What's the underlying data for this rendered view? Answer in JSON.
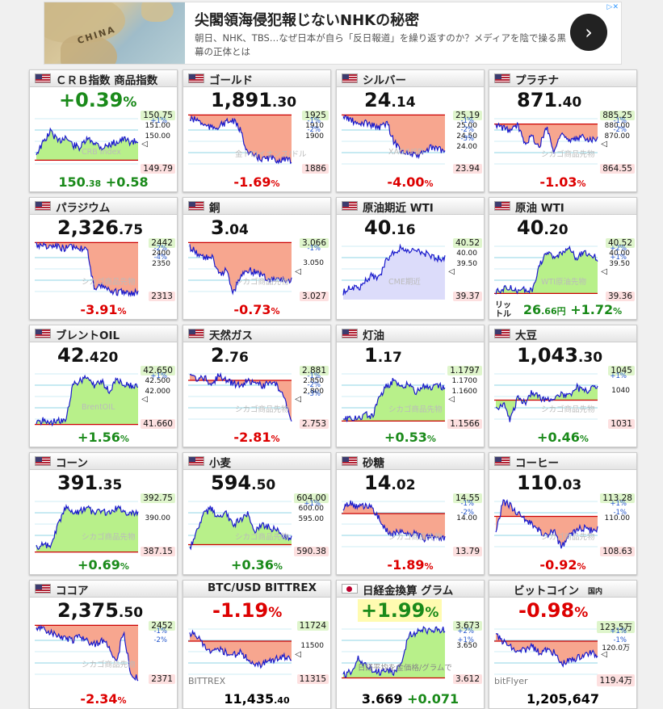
{
  "ad": {
    "map_word": "CHINA",
    "title": "尖閣領海侵犯報じないNHKの秘密",
    "subtitle": "朝日、NHK、TBS…なぜ日本が自ら「反日報道」を繰り返すのか？メディアを陰で操る黒幕の正体とは",
    "button_icon": "chevron-right-icon",
    "button_glyph": "›",
    "close_glyph": "▷✕"
  },
  "colors": {
    "up_fill": "#b8f08a",
    "down_fill": "#f7a68f",
    "line": "#1a1acc",
    "purple_fill": "#dcdcfa"
  },
  "panels": [
    {
      "id": "crb",
      "flag": "us",
      "name": "ＣＲＢ指数 商品指数",
      "big_int": "+0.39",
      "big_dec": "%",
      "big_dir": "up",
      "big_pct": true,
      "hi": "150.75",
      "lo": "149.79",
      "mids": [
        "151.00",
        "150.00"
      ],
      "pcts": [
        "+1%"
      ],
      "wm": "CRB Index",
      "arrow": "◁",
      "bottom_val": "150",
      "bottom_dec": ".38",
      "bottom_chg": "+0.58",
      "bottom_dir": "up",
      "fill": "up",
      "shape": "crb",
      "ref": 0.82
    },
    {
      "id": "gold",
      "flag": "us",
      "name": "ゴールド",
      "big_int": "1,891",
      "big_dec": ".30",
      "big_dir": "none",
      "hi": "1925",
      "lo": "1886",
      "mids": [
        "1910",
        "1900"
      ],
      "pcts": [
        "-1%",
        "-2%"
      ],
      "wm": "金トロイオンス/ドル",
      "bottom_val": "-1.69",
      "bottom_dec": "%",
      "bottom_dir": "dn",
      "fill": "down",
      "shape": "gold",
      "ref": 0.02
    },
    {
      "id": "silver",
      "flag": "us",
      "name": "シルバー",
      "big_int": "24",
      "big_dec": ".14",
      "big_dir": "none",
      "hi": "25.19",
      "lo": "23.94",
      "mids": [
        "25.00",
        "24.50",
        "24.00"
      ],
      "pcts": [
        "-1%",
        "-2%",
        "-3%"
      ],
      "wm": "XAG/USD",
      "bottom_val": "-4.00",
      "bottom_dec": "%",
      "bottom_dir": "dn",
      "fill": "down",
      "shape": "silver",
      "ref": 0.02
    },
    {
      "id": "platinum",
      "flag": "us",
      "name": "プラチナ",
      "big_int": "871",
      "big_dec": ".40",
      "big_dir": "none",
      "hi": "885.25",
      "lo": "864.55",
      "mids": [
        "880.00",
        "870.00"
      ],
      "pcts": [
        "-1%",
        "-2%"
      ],
      "wm": "シカゴ商品先物",
      "arrow": "◁",
      "bottom_val": "-1.03",
      "bottom_dec": "%",
      "bottom_dir": "dn",
      "fill": "down",
      "shape": "plat",
      "ref": 0.18
    },
    {
      "id": "palladium",
      "flag": "us",
      "name": "パラジウム",
      "big_int": "2,326",
      "big_dec": ".75",
      "big_dir": "none",
      "hi": "2442",
      "lo": "2313",
      "mids": [
        "2400",
        "2350"
      ],
      "pcts": [
        "-2%",
        "-4%"
      ],
      "wm": "シカゴ商品先物",
      "bottom_val": "-3.91",
      "bottom_dec": "%",
      "bottom_dir": "dn",
      "fill": "down",
      "shape": "pall",
      "ref": 0.02
    },
    {
      "id": "copper",
      "flag": "us",
      "name": "銅",
      "big_int": "3",
      "big_dec": ".04",
      "big_dir": "none",
      "hi": "3.066",
      "lo": "3.027",
      "mids": [
        "3.050"
      ],
      "pcts": [
        "-1%"
      ],
      "wm": "シカゴ商品先物",
      "arrow": "◁",
      "bottom_val": "-0.73",
      "bottom_dec": "%",
      "bottom_dir": "dn",
      "fill": "down",
      "shape": "copper",
      "ref": 0.02
    },
    {
      "id": "crude_near",
      "flag": "us",
      "name": "原油期近 WTI",
      "big_int": "40",
      "big_dec": ".16",
      "big_dir": "none",
      "hi": "40.52",
      "lo": "39.37",
      "mids": [
        "40.00",
        "39.50"
      ],
      "pcts": [],
      "wm": "CME期近",
      "arrow": "◁",
      "bottom_val": "",
      "bottom_dec": "",
      "bottom_dir": "none",
      "fill": "purple",
      "shape": "crude",
      "ref": 1.0
    },
    {
      "id": "crude_wti",
      "flag": "us",
      "name": "原油 WTI",
      "big_int": "40",
      "big_dec": ".20",
      "big_dir": "none",
      "hi": "40.52",
      "lo": "39.36",
      "mids": [
        "40.00",
        "39.50"
      ],
      "pcts": [
        "+2%",
        "+1%"
      ],
      "wm": "WTI原油先物",
      "arrow": "◁",
      "ltr": "リッ\nトル",
      "bottom_val": "26",
      "bottom_dec": ".66円",
      "bottom_chg": "+1.72",
      "bottom_chg_unit": "%",
      "bottom_dir": "up",
      "fill": "up",
      "shape": "wti",
      "ref": 0.92
    },
    {
      "id": "brent",
      "flag": "us",
      "name": "ブレントOIL",
      "big_int": "42",
      "big_dec": ".420",
      "big_dir": "none",
      "hi": "42.650",
      "lo": "41.660",
      "mids": [
        "42.500",
        "42.000"
      ],
      "pcts": [
        "+1%"
      ],
      "wm": "BrentOIL",
      "arrow": "◁",
      "bottom_val": "+1.56",
      "bottom_dec": "%",
      "bottom_dir": "up",
      "fill": "up",
      "shape": "brent",
      "ref": 0.98
    },
    {
      "id": "natgas",
      "flag": "us",
      "name": "天然ガス",
      "big_int": "2",
      "big_dec": ".76",
      "big_dir": "none",
      "hi": "2.881",
      "lo": "2.753",
      "mids": [
        "2.850",
        "2.800"
      ],
      "pcts": [
        "-1%",
        "-2%",
        "-3%"
      ],
      "wm": "シカゴ商品先物",
      "arrow": "◁",
      "bottom_val": "-2.81",
      "bottom_dec": "%",
      "bottom_dir": "dn",
      "fill": "down",
      "shape": "natgas",
      "ref": 0.2
    },
    {
      "id": "heating",
      "flag": "us",
      "name": "灯油",
      "big_int": "1",
      "big_dec": ".17",
      "big_dir": "none",
      "hi": "1.1797",
      "lo": "1.1566",
      "mids": [
        "1.1700",
        "1.1600"
      ],
      "pcts": [],
      "wm": "シカゴ商品先物",
      "arrow": "◁",
      "bottom_val": "+0.53",
      "bottom_dec": "%",
      "bottom_dir": "up",
      "fill": "up",
      "shape": "heat",
      "ref": 0.92
    },
    {
      "id": "soybean",
      "flag": "us",
      "name": "大豆",
      "big_int": "1,043",
      "big_dec": ".30",
      "big_dir": "none",
      "hi": "1045",
      "lo": "1031",
      "mids": [
        "1040"
      ],
      "pcts": [
        "+1%"
      ],
      "wm": "シカゴ商品先物",
      "bottom_val": "+0.46",
      "bottom_dec": "%",
      "bottom_dir": "up",
      "fill": "up",
      "shape": "soy",
      "ref": 0.55
    },
    {
      "id": "corn",
      "flag": "us",
      "name": "コーン",
      "big_int": "391",
      "big_dec": ".35",
      "big_dir": "none",
      "hi": "392.75",
      "lo": "387.15",
      "mids": [
        "390.00"
      ],
      "pcts": [],
      "wm": "シカゴ商品先物",
      "bottom_val": "+0.69",
      "bottom_dec": "%",
      "bottom_dir": "up",
      "fill": "up",
      "shape": "corn",
      "ref": 0.98
    },
    {
      "id": "wheat",
      "flag": "us",
      "name": "小麦",
      "big_int": "594",
      "big_dec": ".50",
      "big_dir": "none",
      "hi": "604.00",
      "lo": "590.38",
      "mids": [
        "600.00",
        "595.00"
      ],
      "pcts": [
        "+1%"
      ],
      "wm": "シカゴ商品先物",
      "bottom_val": "+0.36",
      "bottom_dec": "%",
      "bottom_dir": "up",
      "fill": "up",
      "shape": "wheat",
      "ref": 0.85
    },
    {
      "id": "sugar",
      "flag": "us",
      "name": "砂糖",
      "big_int": "14",
      "big_dec": ".02",
      "big_dir": "none",
      "hi": "14.55",
      "lo": "13.79",
      "mids": [
        "14.00"
      ],
      "pcts": [
        "-1%",
        "-2%"
      ],
      "wm": "シカゴ商品先物",
      "bottom_val": "-1.89",
      "bottom_dec": "%",
      "bottom_dir": "dn",
      "fill": "down",
      "shape": "sugar",
      "ref": 0.3
    },
    {
      "id": "coffee",
      "flag": "us",
      "name": "コーヒー",
      "big_int": "110",
      "big_dec": ".03",
      "big_dir": "none",
      "hi": "113.28",
      "lo": "108.63",
      "mids": [
        "110.00"
      ],
      "pcts": [
        "+1%",
        "-1%"
      ],
      "wm": "シカゴ商品先物",
      "bottom_val": "-0.92",
      "bottom_dec": "%",
      "bottom_dir": "dn",
      "fill": "down",
      "shape": "coffee",
      "ref": 0.35
    },
    {
      "id": "cocoa",
      "flag": "us",
      "name": "ココア",
      "big_int": "2,375",
      "big_dec": ".50",
      "big_dir": "none",
      "hi": "2452",
      "lo": "2371",
      "mids": [],
      "pcts": [
        "-1%",
        "-2%"
      ],
      "wm": "シカゴ商品先物",
      "bottom_val": "-2.34",
      "bottom_dec": "%",
      "bottom_dir": "dn",
      "fill": "down",
      "shape": "cocoa",
      "ref": 0.02
    },
    {
      "id": "btc_usd",
      "flag": "none",
      "name": "BTC/USD BITTREX",
      "big_int": "-1.19",
      "big_dec": "%",
      "big_dir": "dn",
      "big_pct": true,
      "hi": "11724",
      "lo": "11315",
      "mids": [
        "11500"
      ],
      "pcts": [],
      "wm": "BITTREX",
      "arrow": "◁",
      "bottom_val": "11,435",
      "bottom_dec": ".40",
      "bottom_dir": "none",
      "fill": "down",
      "shape": "btcusd",
      "ref": 0.3
    },
    {
      "id": "nikkei_gold",
      "flag": "jp",
      "name": "日経金換算 グラム",
      "big_int": "+1.99",
      "big_dec": "%",
      "big_dir": "up",
      "big_pct": true,
      "hi": "3.673",
      "lo": "3.612",
      "mids": [
        "3.650"
      ],
      "pcts": [
        "+2%",
        "+1%"
      ],
      "wm": "日経平均を金価格/グラムで",
      "bottom_val": "3.669",
      "bottom_dec": "",
      "bottom_chg": "+0.071",
      "bottom_dir": "none",
      "fill": "up",
      "shape": "nikkei",
      "ref": 0.95
    },
    {
      "id": "bitcoin",
      "flag": "none",
      "name": "ビットコイン",
      "name_small": "国内",
      "big_int": "-0.98",
      "big_dec": "%",
      "big_dir": "dn",
      "big_pct": true,
      "hi": "123.5万",
      "lo": "119.4万",
      "mids": [
        "120.0万"
      ],
      "pcts": [
        "+1%",
        "-1%"
      ],
      "wm": "bitFlyer",
      "arrow": "◁",
      "bottom_val": "1,205,647",
      "bottom_dec": "",
      "bottom_dir": "none",
      "fill": "down",
      "shape": "bitcoin",
      "ref": 0.3
    }
  ]
}
